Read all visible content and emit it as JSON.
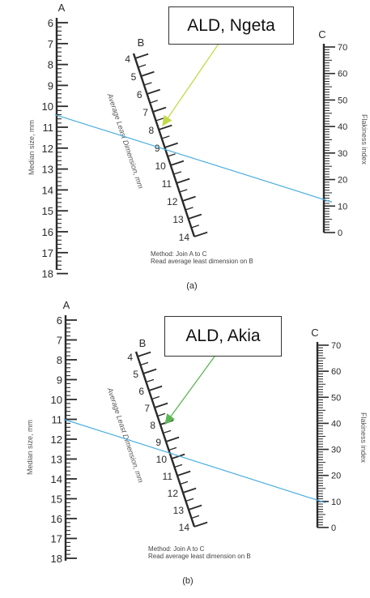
{
  "colors": {
    "ink": "#2a2a2a",
    "join_line": "#4aaede",
    "arrow_top": "#c4d94a",
    "arrow_bottom": "#5ab552",
    "callout_border": "#333333"
  },
  "scales": {
    "a_letter": "A",
    "b_letter": "B",
    "c_letter": "C",
    "a_ticks": [
      "6",
      "7",
      "8",
      "9",
      "10",
      "11",
      "12",
      "13",
      "14",
      "15",
      "16",
      "17",
      "18"
    ],
    "b_ticks": [
      "4",
      "5",
      "6",
      "7",
      "8",
      "9",
      "10",
      "11",
      "12",
      "13",
      "14"
    ],
    "c_ticks": [
      "70",
      "60",
      "50",
      "40",
      "30",
      "20",
      "10",
      "0"
    ],
    "a_axis_label": "Median size, mm",
    "b_axis_label": "Average Least Dimension, mm",
    "c_axis_label": "Flakiness index"
  },
  "method": {
    "line1": "Method:  Join A to C",
    "line2": "Read average least dimension on B"
  },
  "panels": [
    {
      "callout": "ALD, Ngeta",
      "caption": "(a)",
      "join": {
        "a_value": 10.4,
        "c_value": 11.5
      },
      "arrow_target_b": 8.0
    },
    {
      "callout": "ALD, Akia",
      "caption": "(b)",
      "join": {
        "a_value": 11.0,
        "c_value": 9.5
      },
      "arrow_target_b": 8.2
    }
  ]
}
